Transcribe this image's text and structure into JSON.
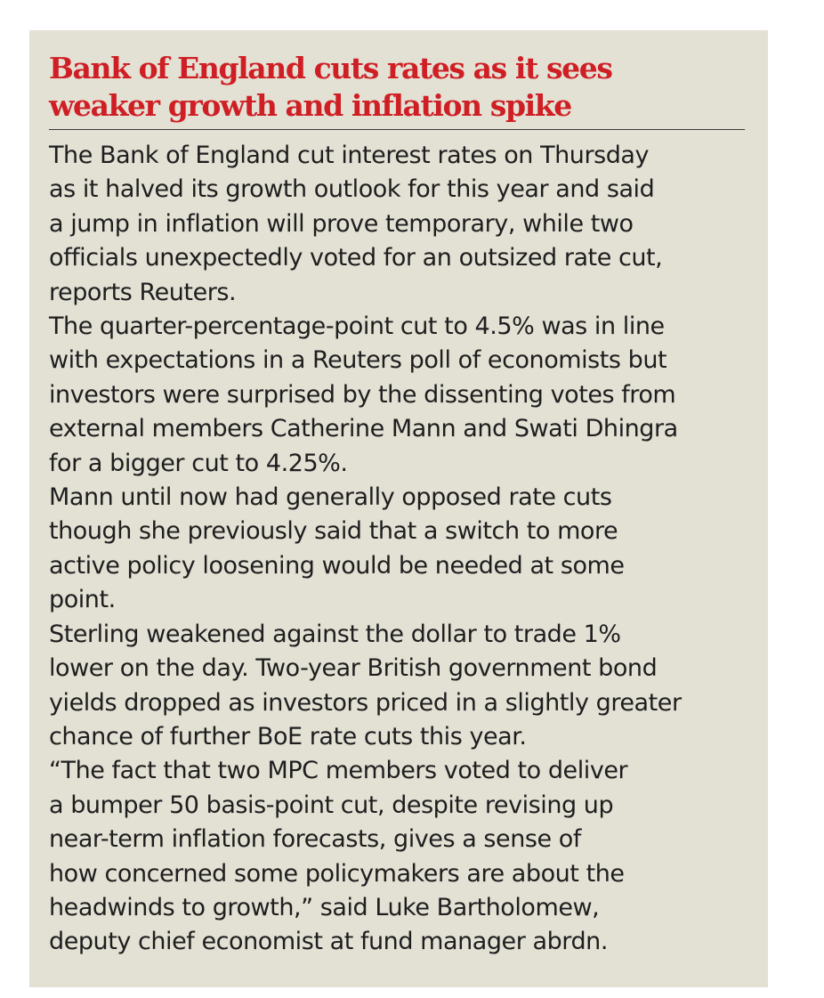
{
  "article": {
    "headline_lines": [
      "Bank of England cuts rates as it sees",
      "weaker growth and inflation spike"
    ],
    "paragraphs": [
      {
        "lines": [
          "The Bank of England cut interest rates on Thursday",
          "as it halved its growth outlook for this year and said",
          "a jump in inflation will prove temporary, while two",
          "officials unexpectedly voted for an outsized rate cut,",
          "reports Reuters."
        ]
      },
      {
        "lines": [
          "The quarter-percentage-point cut to 4.5% was in line",
          "with expectations in a Reuters poll of economists but",
          "investors were surprised by the dissenting votes from",
          "external members Catherine Mann and Swati Dhingra",
          "for a bigger cut to 4.25%."
        ]
      },
      {
        "lines": [
          "Mann until now had generally opposed rate cuts",
          "though she previously said that a switch to more",
          "active policy loosening would be needed at some",
          "point."
        ]
      },
      {
        "lines": [
          "Sterling weakened against the dollar to trade 1%",
          "lower on the day. Two-year British government bond",
          "yields dropped as investors priced in a slightly greater",
          "chance of further BoE rate cuts this year."
        ]
      },
      {
        "lines": [
          "“The fact that two MPC members voted to deliver",
          "a bumper 50 basis-point cut, despite revising up",
          "near-term inflation forecasts, gives a sense of",
          "how concerned some policymakers are about the",
          "headwinds to growth,” said Luke Bartholomew,",
          "deputy chief economist at fund manager abrdn."
        ]
      }
    ]
  },
  "colors": {
    "headline": "#cf1f25",
    "background": "#e3e0d4",
    "text": "#1e1e1e",
    "rule": "#3a3a3a"
  }
}
